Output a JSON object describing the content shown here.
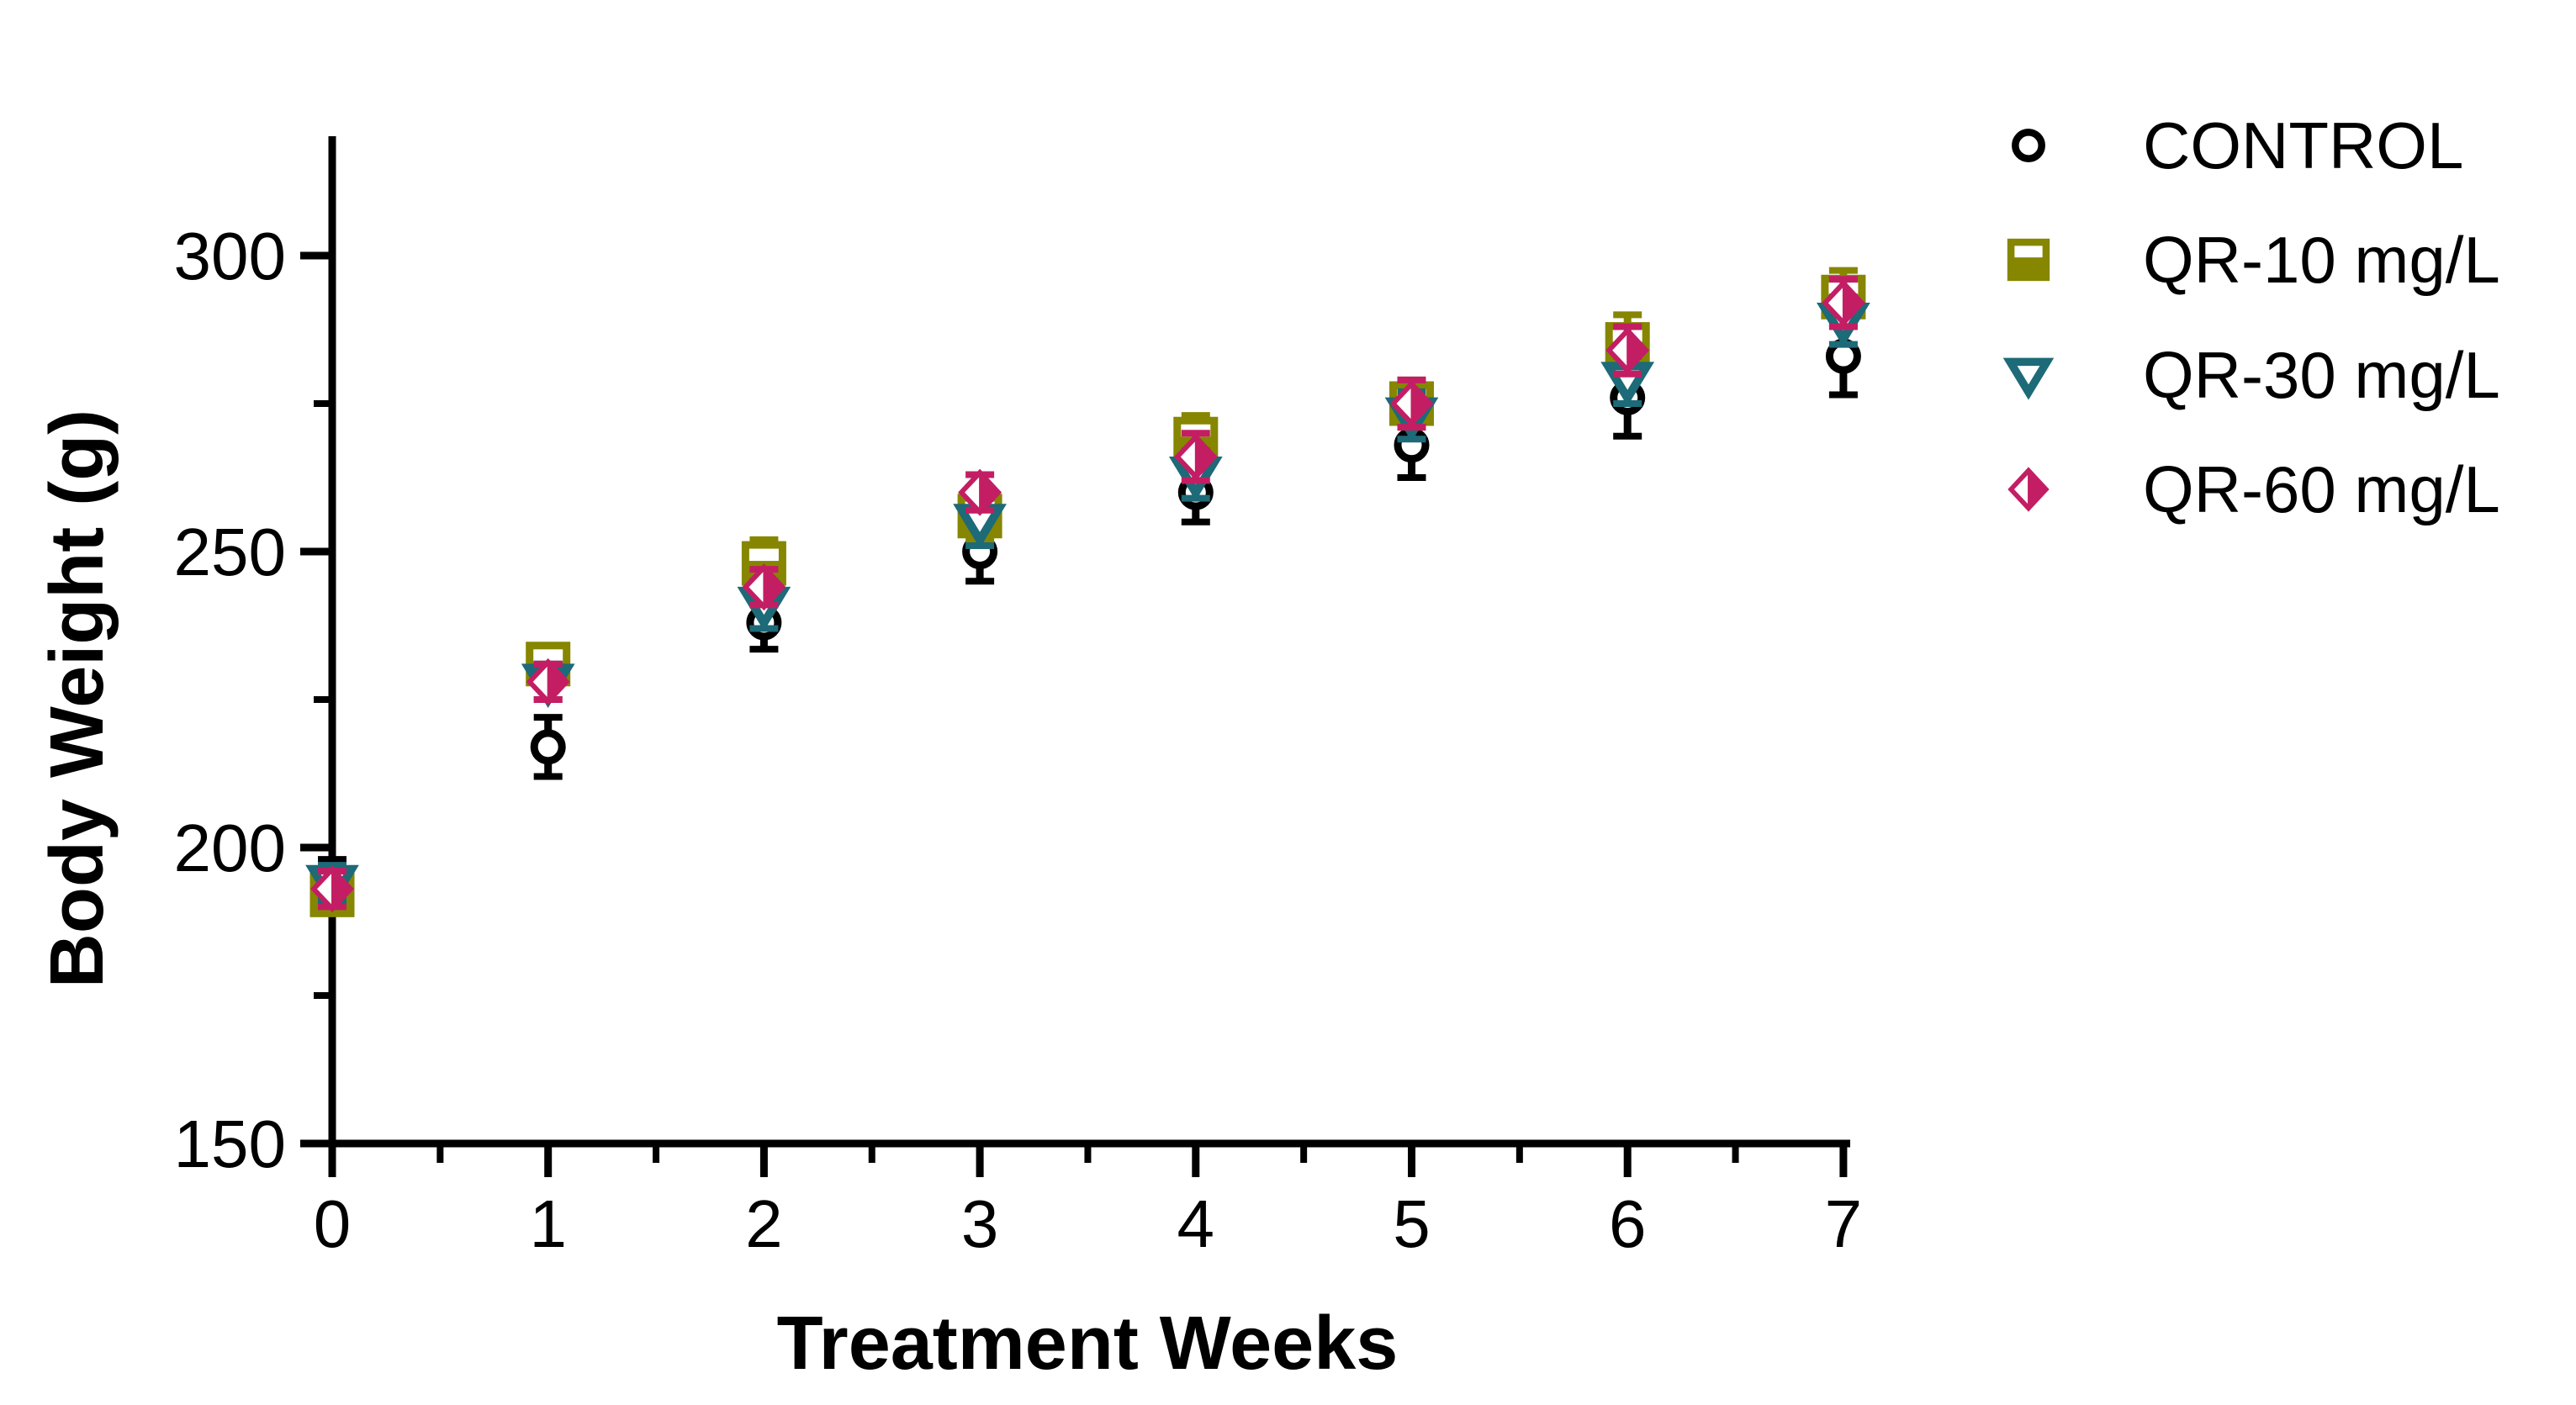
{
  "chart_data": {
    "type": "scatter",
    "title": "",
    "xlabel": "Treatment Weeks",
    "ylabel": "Body Weight (g)",
    "x": [
      0,
      1,
      2,
      3,
      4,
      5,
      6,
      7
    ],
    "x_tick_labels": [
      "0",
      "1",
      "2",
      "3",
      "4",
      "5",
      "6",
      "7"
    ],
    "xlim": [
      0,
      7
    ],
    "ylim": [
      150,
      320
    ],
    "y_major_ticks": [
      150,
      200,
      250,
      300
    ],
    "y_minor_ticks": [
      175,
      225,
      275
    ],
    "x_minor_ticks": [
      0.5,
      1.5,
      2.5,
      3.5,
      4.5,
      5.5,
      6.5
    ],
    "grid": false,
    "legend_position": "right",
    "axis_color": "#000000",
    "series": [
      {
        "name": "CONTROL",
        "marker": "open-circle",
        "color": "#000000",
        "values": [
          195,
          217,
          238,
          250,
          260,
          268,
          276,
          283
        ],
        "errors": [
          3,
          5,
          4.5,
          5,
          5,
          5.5,
          6.5,
          6.5
        ]
      },
      {
        "name": "QR-10 mg/L",
        "marker": "half-bottom-filled-square",
        "color": "#868600",
        "values": [
          192,
          231,
          248,
          256,
          269,
          275,
          285,
          293
        ],
        "errors": [
          3,
          3,
          4,
          4,
          4,
          4,
          5,
          4.5
        ]
      },
      {
        "name": "QR-30 mg/L",
        "marker": "open-down-triangle",
        "color": "#1d6a78",
        "values": [
          194,
          228,
          241,
          255,
          263,
          273,
          279,
          289
        ],
        "errors": [
          3,
          3,
          4,
          4,
          4,
          4,
          4,
          4
        ]
      },
      {
        "name": "QR-60 mg/L",
        "marker": "right-half-filled-diamond",
        "color": "#c31e63",
        "values": [
          193,
          228,
          244,
          260,
          266,
          275,
          284,
          292
        ],
        "errors": [
          3,
          3,
          3,
          3,
          4,
          4,
          4,
          4
        ]
      }
    ]
  }
}
